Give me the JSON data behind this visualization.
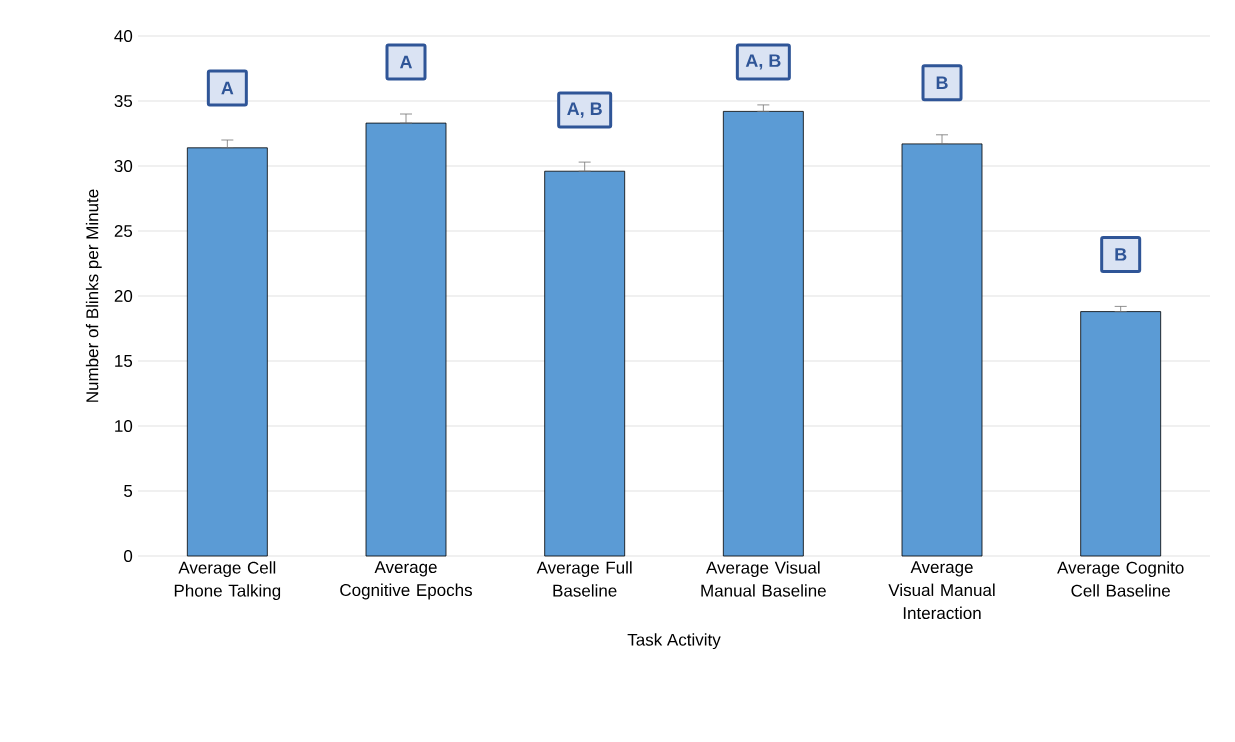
{
  "chart_data": {
    "type": "bar",
    "xlabel": "Task Activity",
    "ylabel": "Number of Blinks per Minute",
    "categories": [
      "Average Cell Phone Talking",
      "Average Cognitive Epochs",
      "Average Full Baseline",
      "Average Visual Manual Baseline",
      "Average Visual Manual Interaction",
      "Average Cognito Cell Baseline"
    ],
    "values": [
      31.4,
      33.3,
      29.6,
      34.2,
      31.7,
      18.8
    ],
    "errors": [
      [
        31.4,
        32.0
      ],
      [
        33.3,
        34.0
      ],
      [
        29.6,
        30.3
      ],
      [
        34.2,
        34.7
      ],
      [
        31.7,
        32.4
      ],
      [
        18.8,
        19.2
      ]
    ],
    "color": "#5b9bd5",
    "ylim": [
      0,
      40
    ],
    "yticks": [
      0,
      5,
      10,
      15,
      20,
      25,
      30,
      35,
      40
    ],
    "grid": "y",
    "annotations": [
      "A",
      "A",
      "A, B",
      "A, B",
      "B",
      "B"
    ]
  }
}
